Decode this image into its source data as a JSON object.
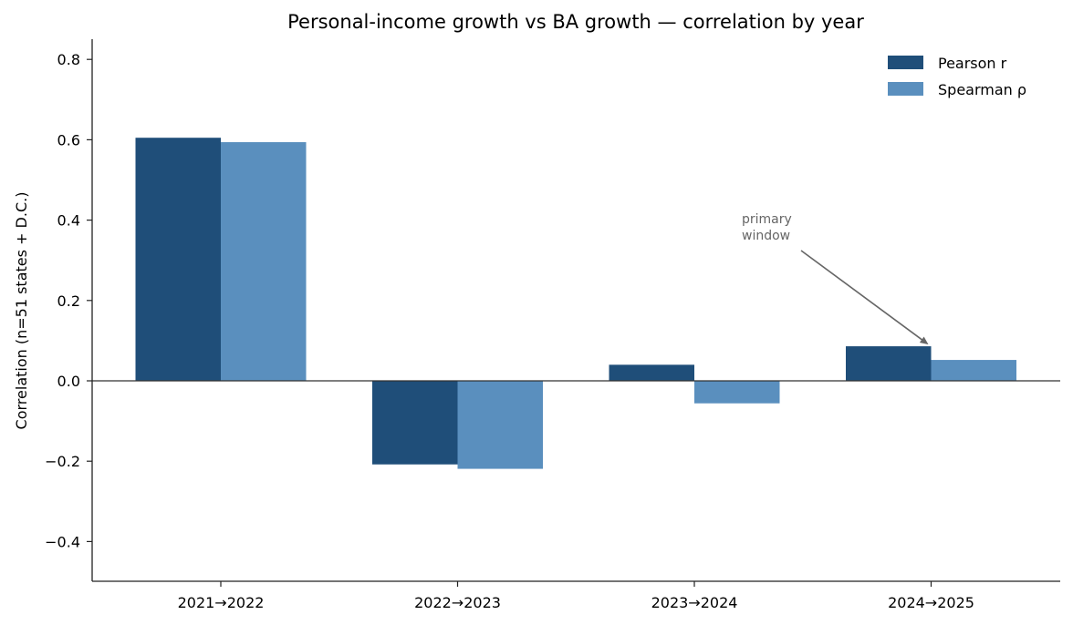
{
  "chart_data": {
    "type": "bar",
    "title": "Personal-income growth vs BA growth — correlation by year",
    "xlabel": "",
    "ylabel": "Correlation (n=51 states + D.C.)",
    "categories": [
      "2021→2022",
      "2022→2023",
      "2023→2024",
      "2024→2025"
    ],
    "series": [
      {
        "name": "Pearson r",
        "color": "#1f4e79",
        "values": [
          0.605,
          -0.208,
          0.04,
          0.086
        ]
      },
      {
        "name": "Spearman ρ",
        "color": "#5a8fbe",
        "values": [
          0.594,
          -0.219,
          -0.056,
          0.052
        ]
      }
    ],
    "ylim": [
      -0.5,
      0.85
    ],
    "yticks": [
      0.8,
      0.6,
      0.4,
      0.2,
      0.0,
      -0.2,
      -0.4
    ],
    "ytick_labels": [
      "0.8",
      "0.6",
      "0.4",
      "0.2",
      "0.0",
      "−0.2",
      "−0.4"
    ],
    "legend_position": "top-right",
    "grid": false,
    "annotation": {
      "lines": [
        "primary",
        "window"
      ],
      "target_category": "2024→2025",
      "target_series": "Pearson r",
      "color": "#666666"
    }
  }
}
